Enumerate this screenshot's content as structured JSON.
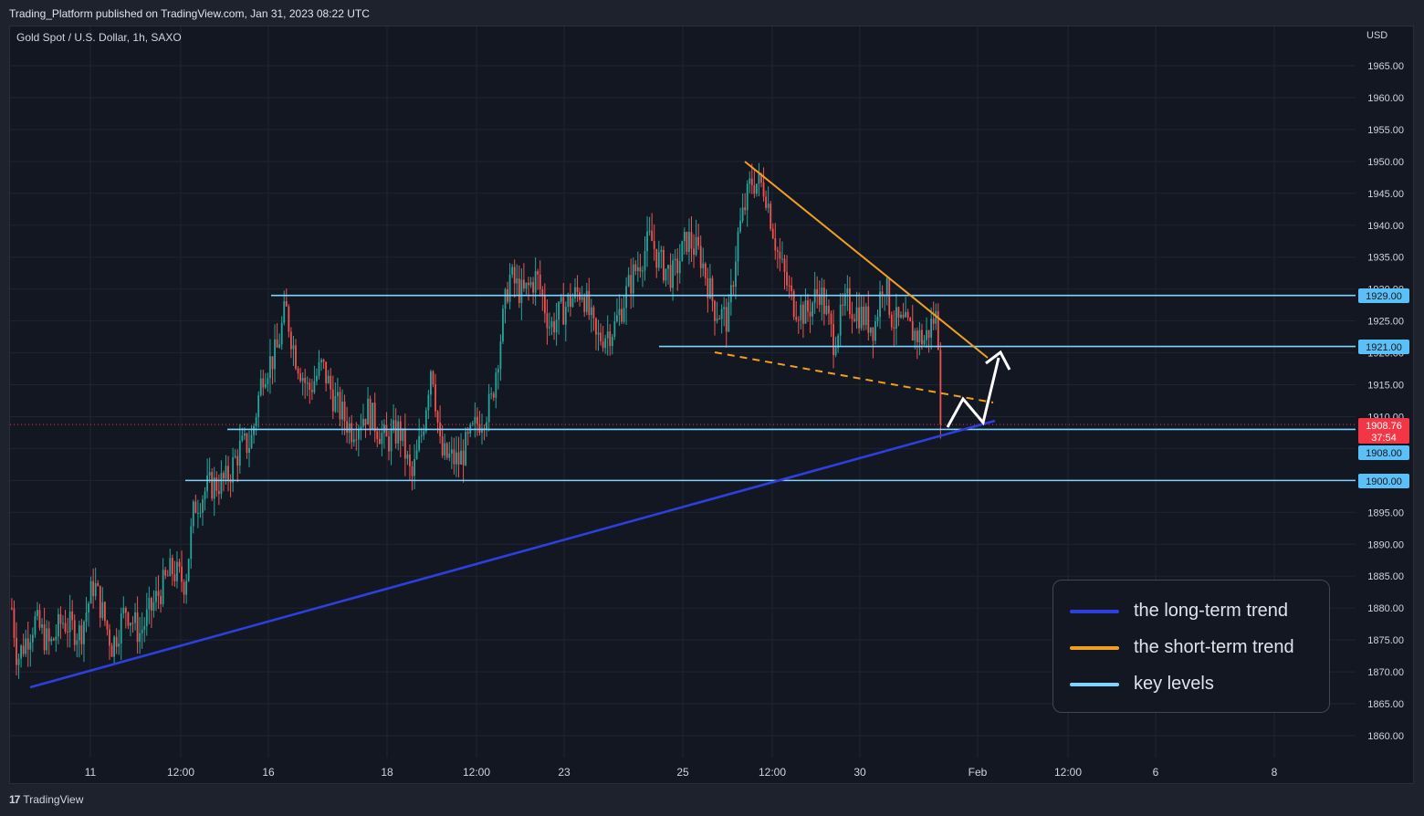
{
  "header": {
    "published": "Trading_Platform published on TradingView.com, Jan 31, 2023 08:22 UTC"
  },
  "chart_header": {
    "symbol": "Gold Spot / U.S. Dollar, 1h, SAXO",
    "currency": "USD"
  },
  "footer": {
    "logo_text": "TradingView"
  },
  "colors": {
    "background": "#131722",
    "up": "#26a69a",
    "down": "#ef5350",
    "long_trend": "#2e3fe0",
    "short_trend": "#f0a020",
    "key_level": "#7fd3ff",
    "price_badge": "#f23645",
    "level_badge": "#5bc0f5"
  },
  "legend": {
    "items": [
      {
        "label": "the long-term trend",
        "color": "#2e3fe0"
      },
      {
        "label": "the short-term trend",
        "color": "#f0a020"
      },
      {
        "label": "key levels",
        "color": "#7fd3ff"
      }
    ]
  },
  "price_badges": {
    "last_price": "1908.76",
    "countdown": "37:54",
    "levels": [
      "1929.00",
      "1921.00",
      "1908.00",
      "1900.00"
    ]
  },
  "chart_data": {
    "type": "candlestick",
    "symbol": "Gold Spot / U.S. Dollar",
    "interval": "1h",
    "ylim": [
      1857,
      1968
    ],
    "yticks": [
      "1965.00",
      "1960.00",
      "1955.00",
      "1950.00",
      "1945.00",
      "1940.00",
      "1935.00",
      "1930.00",
      "1925.00",
      "1920.00",
      "1915.00",
      "1910.00",
      "1905.00",
      "1900.00",
      "1895.00",
      "1890.00",
      "1885.00",
      "1880.00",
      "1875.00",
      "1870.00",
      "1865.00",
      "1860.00"
    ],
    "xticks": [
      "11",
      "12:00",
      "16",
      "18",
      "12:00",
      "23",
      "25",
      "12:00",
      "30",
      "Feb",
      "12:00",
      "6",
      "8"
    ],
    "last_price": 1908.76,
    "price_path_anchors": [
      [
        0,
        1880
      ],
      [
        6,
        1872
      ],
      [
        25,
        1878
      ],
      [
        42,
        1874
      ],
      [
        55,
        1878
      ],
      [
        75,
        1876
      ],
      [
        90,
        1884
      ],
      [
        110,
        1874
      ],
      [
        125,
        1880
      ],
      [
        140,
        1876
      ],
      [
        160,
        1882
      ],
      [
        175,
        1886
      ],
      [
        190,
        1884
      ],
      [
        200,
        1896
      ],
      [
        215,
        1899
      ],
      [
        235,
        1900
      ],
      [
        250,
        1905
      ],
      [
        262,
        1906
      ],
      [
        275,
        1917
      ],
      [
        290,
        1920
      ],
      [
        300,
        1927
      ],
      [
        310,
        1920
      ],
      [
        325,
        1914
      ],
      [
        340,
        1918
      ],
      [
        355,
        1912
      ],
      [
        372,
        1908
      ],
      [
        390,
        1911
      ],
      [
        410,
        1906
      ],
      [
        425,
        1908
      ],
      [
        438,
        1900
      ],
      [
        450,
        1908
      ],
      [
        460,
        1919
      ],
      [
        470,
        1904
      ],
      [
        490,
        1903
      ],
      [
        510,
        1909
      ],
      [
        525,
        1912
      ],
      [
        535,
        1922
      ],
      [
        545,
        1932
      ],
      [
        560,
        1929
      ],
      [
        575,
        1932
      ],
      [
        590,
        1924
      ],
      [
        610,
        1928
      ],
      [
        625,
        1930
      ],
      [
        640,
        1922
      ],
      [
        660,
        1924
      ],
      [
        680,
        1932
      ],
      [
        700,
        1938
      ],
      [
        710,
        1934
      ],
      [
        725,
        1932
      ],
      [
        740,
        1938
      ],
      [
        755,
        1935
      ],
      [
        770,
        1927
      ],
      [
        785,
        1925
      ],
      [
        795,
        1938
      ],
      [
        810,
        1947
      ],
      [
        825,
        1946
      ],
      [
        840,
        1935
      ],
      [
        855,
        1928
      ],
      [
        870,
        1926
      ],
      [
        885,
        1930
      ],
      [
        900,
        1922
      ],
      [
        915,
        1928
      ],
      [
        930,
        1926
      ],
      [
        945,
        1924
      ],
      [
        955,
        1932
      ],
      [
        965,
        1925
      ],
      [
        980,
        1924
      ],
      [
        1000,
        1922
      ],
      [
        1012,
        1926
      ],
      [
        1020,
        1916
      ],
      [
        1030,
        1909
      ]
    ],
    "key_levels": [
      1929,
      1921,
      1908,
      1900
    ],
    "long_term_trend": {
      "from": [
        "Jan 10",
        1868
      ],
      "to": [
        "Feb 1",
        1910
      ]
    },
    "short_term_trend": {
      "from": [
        "Jan 26",
        1950
      ],
      "to": [
        "Feb 1",
        1919
      ]
    },
    "short_term_dashed": {
      "from": [
        "Jan 25",
        1920
      ],
      "to": [
        "Feb 1",
        1912
      ]
    },
    "projection": [
      1909,
      1913,
      1909,
      1920
    ]
  }
}
